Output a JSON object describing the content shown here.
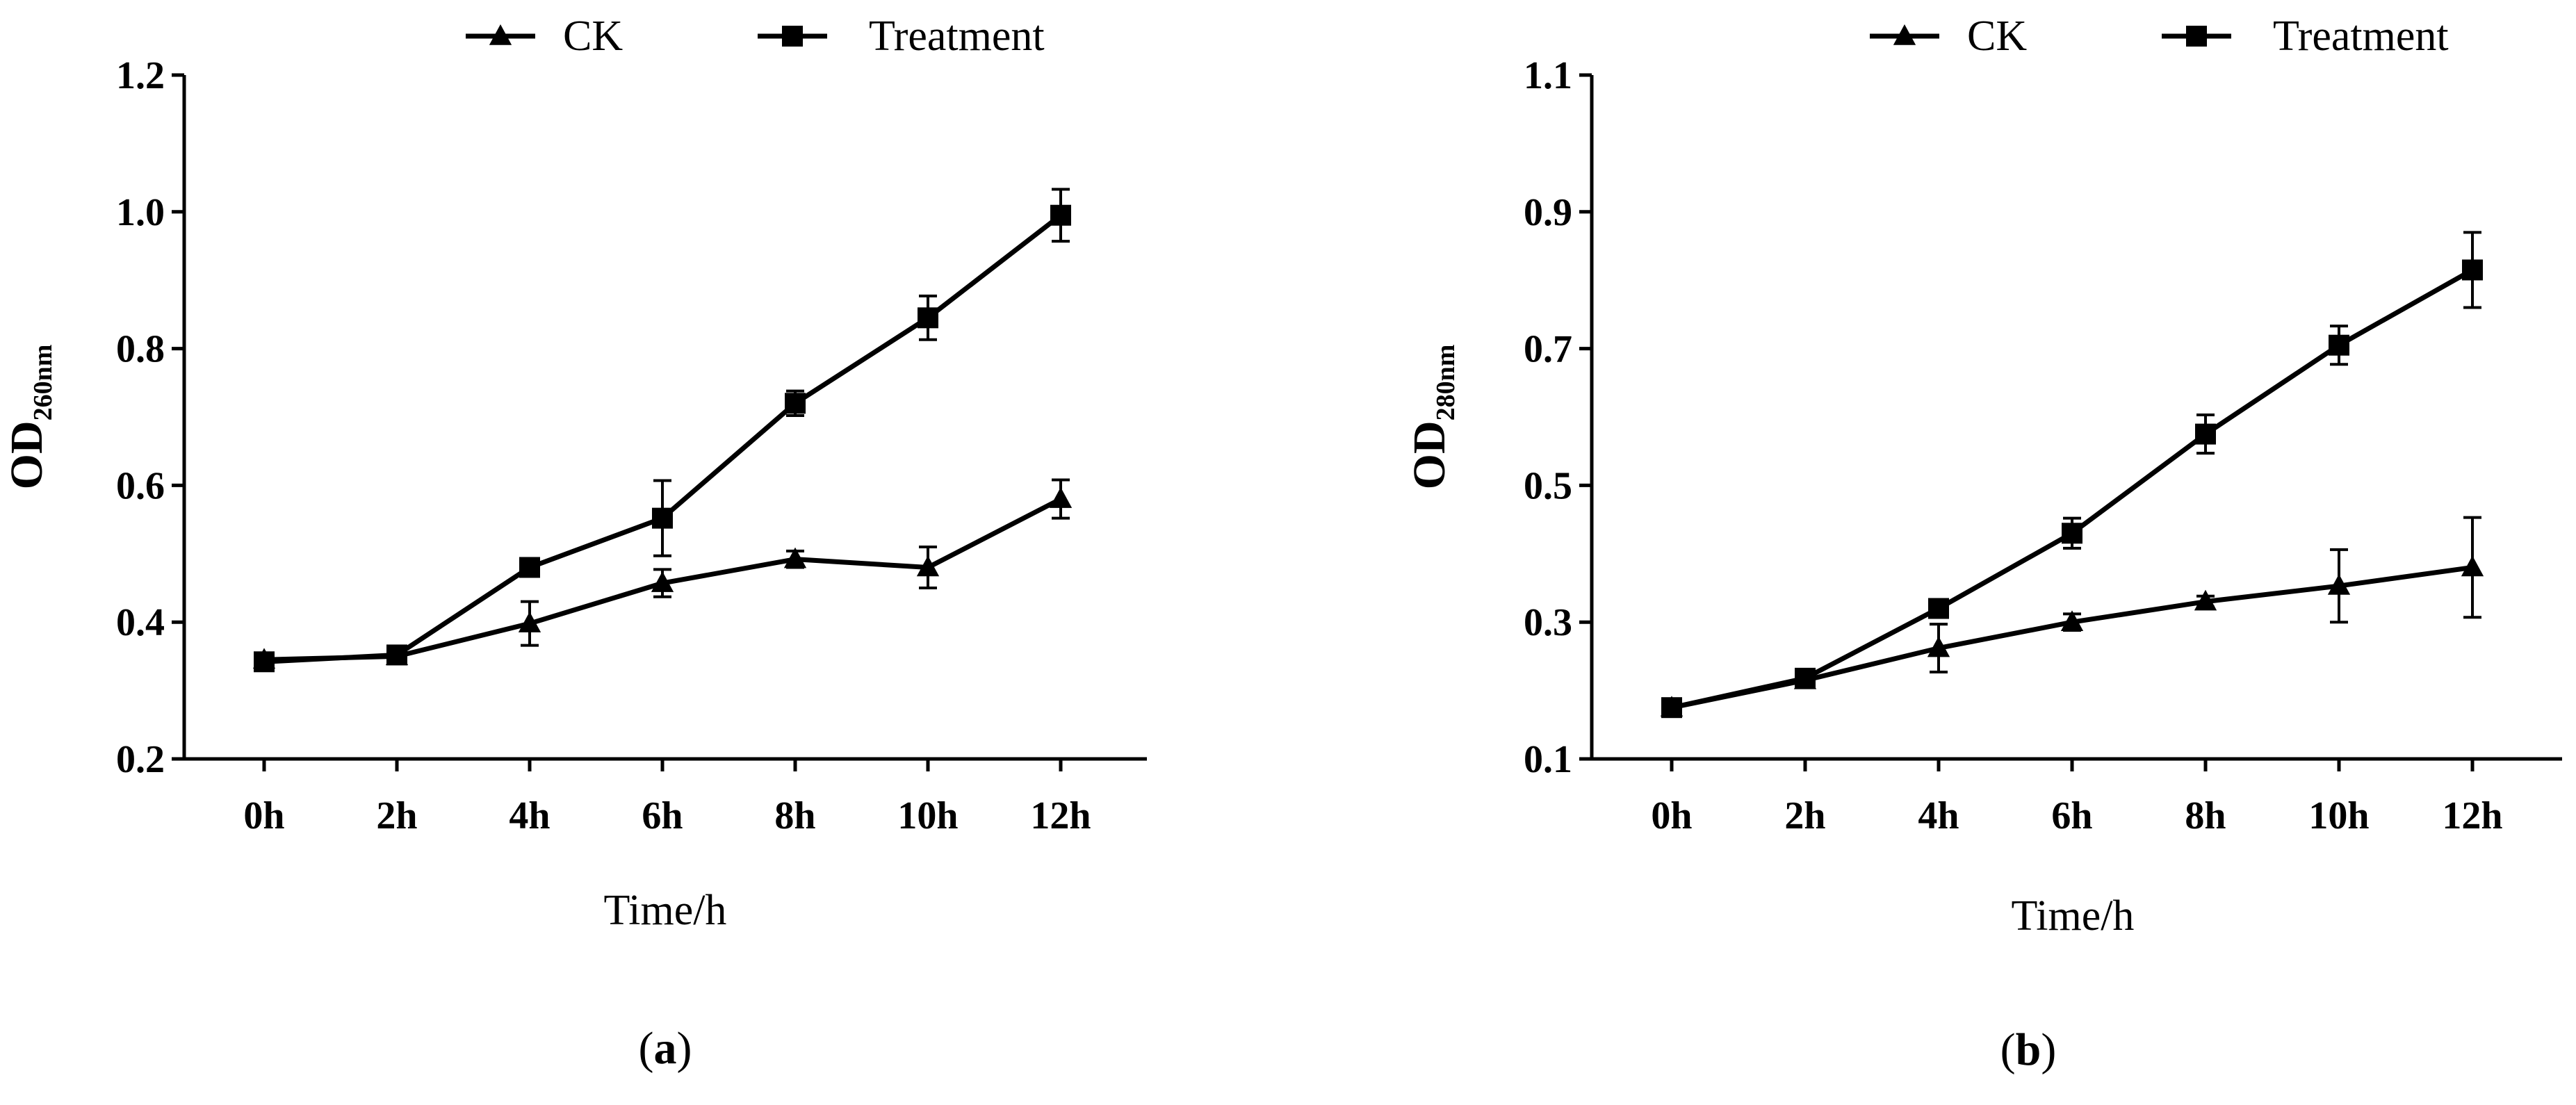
{
  "chart_data": [
    {
      "type": "line",
      "panel_caption": "a",
      "title": "",
      "xlabel": "Time/h",
      "ylabel_main": "OD",
      "ylabel_sub": "260nm",
      "categories": [
        "0h",
        "2h",
        "4h",
        "6h",
        "8h",
        "10h",
        "12h"
      ],
      "ylim": [
        0.2,
        1.2
      ],
      "yticks": [
        "0.2",
        "0.4",
        "0.6",
        "0.8",
        "1.0",
        "1.2"
      ],
      "ytick_values": [
        0.2,
        0.4,
        0.6,
        0.8,
        1.0,
        1.2
      ],
      "legend_position": "top-center",
      "series": [
        {
          "name": "CK",
          "marker": "triangle",
          "values": [
            0.345,
            0.35,
            0.398,
            0.457,
            0.492,
            0.48,
            0.58
          ],
          "errors": [
            0.01,
            0.008,
            0.032,
            0.02,
            0.012,
            0.03,
            0.028
          ]
        },
        {
          "name": "Treatment",
          "marker": "square",
          "values": [
            0.342,
            0.352,
            0.48,
            0.552,
            0.72,
            0.845,
            0.995
          ],
          "errors": [
            0.012,
            0.008,
            0.008,
            0.055,
            0.018,
            0.032,
            0.038
          ]
        }
      ]
    },
    {
      "type": "line",
      "panel_caption": "b",
      "title": "",
      "xlabel": "Time/h",
      "ylabel_main": "OD",
      "ylabel_sub": "280nm",
      "categories": [
        "0h",
        "2h",
        "4h",
        "6h",
        "8h",
        "10h",
        "12h"
      ],
      "ylim": [
        0.1,
        1.1
      ],
      "yticks": [
        "0.1",
        "0.3",
        "0.5",
        "0.7",
        "0.9",
        "1.1"
      ],
      "ytick_values": [
        0.1,
        0.3,
        0.5,
        0.7,
        0.9,
        1.1
      ],
      "legend_position": "top-center",
      "series": [
        {
          "name": "CK",
          "marker": "triangle",
          "values": [
            0.175,
            0.215,
            0.262,
            0.3,
            0.33,
            0.353,
            0.38
          ],
          "errors": [
            0.008,
            0.006,
            0.035,
            0.012,
            0.008,
            0.053,
            0.073
          ]
        },
        {
          "name": "Treatment",
          "marker": "square",
          "values": [
            0.175,
            0.218,
            0.32,
            0.43,
            0.575,
            0.705,
            0.815
          ],
          "errors": [
            0.008,
            0.006,
            0.008,
            0.022,
            0.028,
            0.028,
            0.055
          ]
        }
      ]
    }
  ]
}
